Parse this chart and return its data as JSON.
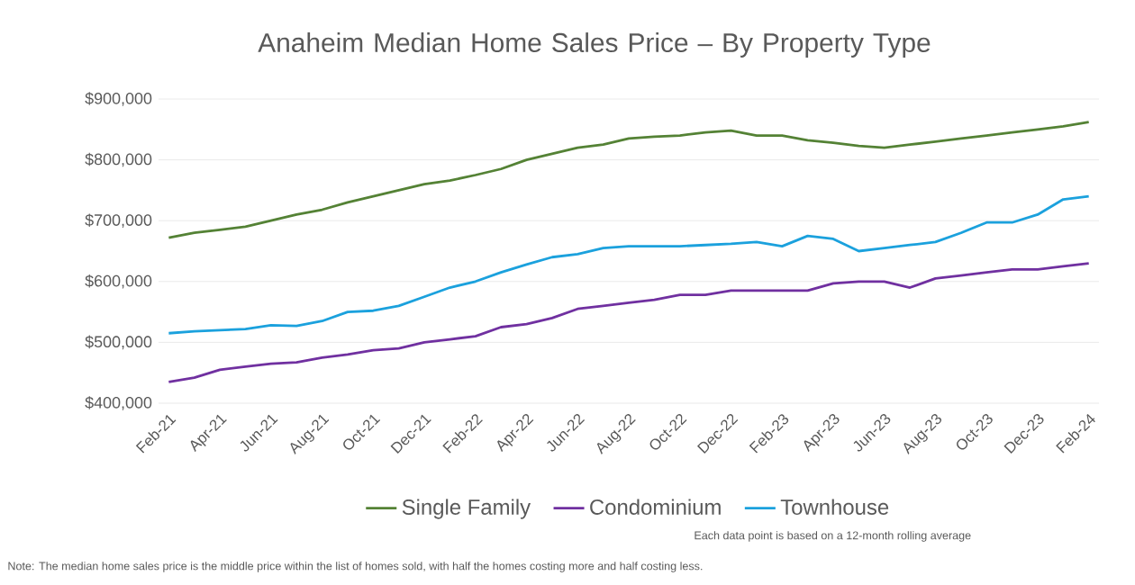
{
  "chart_data": {
    "type": "line",
    "title": "Anaheim Median Home Sales Price – By Property Type",
    "categories": [
      "Feb-21",
      null,
      "Apr-21",
      null,
      "Jun-21",
      null,
      "Aug-21",
      null,
      "Oct-21",
      null,
      "Dec-21",
      null,
      "Feb-22",
      null,
      "Apr-22",
      null,
      "Jun-22",
      null,
      "Aug-22",
      null,
      "Oct-22",
      null,
      "Dec-22",
      null,
      "Feb-23",
      null,
      "Apr-23",
      null,
      "Jun-23",
      null,
      "Aug-23",
      null,
      "Oct-23",
      null,
      "Dec-23",
      null,
      "Feb-24"
    ],
    "series": [
      {
        "name": "Single Family",
        "color": "#548235",
        "values": [
          672000,
          680000,
          685000,
          690000,
          700000,
          710000,
          718000,
          730000,
          740000,
          750000,
          760000,
          766000,
          775000,
          785000,
          800000,
          810000,
          820000,
          825000,
          835000,
          838000,
          840000,
          845000,
          848000,
          840000,
          840000,
          832000,
          828000,
          823000,
          820000,
          825000,
          830000,
          835000,
          840000,
          845000,
          850000,
          855000,
          862000
        ]
      },
      {
        "name": "Condominium",
        "color": "#7030a0",
        "values": [
          435000,
          442000,
          455000,
          460000,
          465000,
          467000,
          475000,
          480000,
          487000,
          490000,
          500000,
          505000,
          510000,
          525000,
          530000,
          540000,
          555000,
          560000,
          565000,
          570000,
          578000,
          578000,
          585000,
          585000,
          585000,
          585000,
          597000,
          600000,
          600000,
          590000,
          605000,
          610000,
          615000,
          620000,
          620000,
          625000,
          630000
        ]
      },
      {
        "name": "Townhouse",
        "color": "#1ba1dd",
        "values": [
          515000,
          518000,
          520000,
          522000,
          528000,
          527000,
          535000,
          550000,
          552000,
          560000,
          575000,
          590000,
          600000,
          615000,
          628000,
          640000,
          645000,
          655000,
          658000,
          658000,
          658000,
          660000,
          662000,
          665000,
          658000,
          675000,
          670000,
          650000,
          655000,
          660000,
          665000,
          680000,
          697000,
          697000,
          710000,
          735000,
          740000
        ]
      }
    ],
    "ylim": [
      400000,
      900000
    ],
    "yticks": [
      {
        "value": 400000,
        "label": "$400,000"
      },
      {
        "value": 500000,
        "label": "$500,000"
      },
      {
        "value": 600000,
        "label": "$600,000"
      },
      {
        "value": 700000,
        "label": "$700,000"
      },
      {
        "value": 800000,
        "label": "$800,000"
      },
      {
        "value": 900000,
        "label": "$900,000"
      }
    ],
    "grid": "y",
    "legend": "bottom",
    "line_style": "solid",
    "annotations": [
      "Each data point is based on a 12-month rolling average",
      "Note: The median home sales price is the middle price within the list of homes sold, with half the homes costing more and half costing less."
    ]
  }
}
